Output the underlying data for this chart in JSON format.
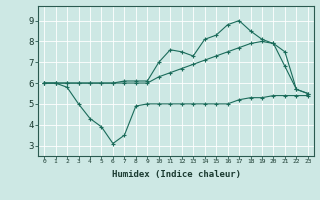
{
  "xlabel": "Humidex (Indice chaleur)",
  "ylabel": "",
  "background_color": "#cde8e4",
  "grid_color": "#b0d8d2",
  "line_color": "#1a6b5a",
  "xlim": [
    -0.5,
    23.5
  ],
  "ylim": [
    2.5,
    9.7
  ],
  "x_ticks": [
    0,
    1,
    2,
    3,
    4,
    5,
    6,
    7,
    8,
    9,
    10,
    11,
    12,
    13,
    14,
    15,
    16,
    17,
    18,
    19,
    20,
    21,
    22,
    23
  ],
  "y_ticks": [
    3,
    4,
    5,
    6,
    7,
    8,
    9
  ],
  "series1": {
    "x": [
      0,
      1,
      2,
      3,
      4,
      5,
      6,
      7,
      8,
      9,
      10,
      11,
      12,
      13,
      14,
      15,
      16,
      17,
      18,
      19,
      20,
      21,
      22,
      23
    ],
    "y": [
      6.0,
      6.0,
      5.8,
      5.0,
      4.3,
      3.9,
      3.1,
      3.5,
      4.9,
      5.0,
      5.0,
      5.0,
      5.0,
      5.0,
      5.0,
      5.0,
      5.0,
      5.2,
      5.3,
      5.3,
      5.4,
      5.4,
      5.4,
      5.4
    ]
  },
  "series2": {
    "x": [
      0,
      1,
      2,
      3,
      4,
      5,
      6,
      7,
      8,
      9,
      10,
      11,
      12,
      13,
      14,
      15,
      16,
      17,
      18,
      19,
      20,
      21,
      22,
      23
    ],
    "y": [
      6.0,
      6.0,
      6.0,
      6.0,
      6.0,
      6.0,
      6.0,
      6.0,
      6.0,
      6.0,
      6.3,
      6.5,
      6.7,
      6.9,
      7.1,
      7.3,
      7.5,
      7.7,
      7.9,
      8.0,
      7.9,
      7.5,
      5.7,
      5.5
    ]
  },
  "series3": {
    "x": [
      0,
      1,
      2,
      3,
      4,
      5,
      6,
      7,
      8,
      9,
      10,
      11,
      12,
      13,
      14,
      15,
      16,
      17,
      18,
      19,
      20,
      21,
      22,
      23
    ],
    "y": [
      6.0,
      6.0,
      6.0,
      6.0,
      6.0,
      6.0,
      6.0,
      6.1,
      6.1,
      6.1,
      7.0,
      7.6,
      7.5,
      7.3,
      8.1,
      8.3,
      8.8,
      9.0,
      8.5,
      8.1,
      7.9,
      6.8,
      5.7,
      5.5
    ]
  }
}
